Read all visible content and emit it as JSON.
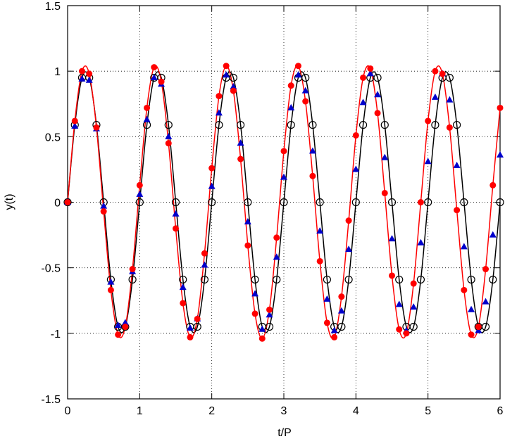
{
  "chart_data": {
    "type": "line",
    "xlabel": "t/P",
    "ylabel": "y(t)",
    "x": [
      0,
      0.1,
      0.2,
      0.3,
      0.4,
      0.5,
      0.6,
      0.7,
      0.8,
      0.9,
      1,
      1.1,
      1.2,
      1.3,
      1.4,
      1.5,
      1.6,
      1.7,
      1.8,
      1.9,
      2,
      2.1,
      2.2,
      2.3,
      2.4,
      2.5,
      2.6,
      2.7,
      2.8,
      2.9,
      3,
      3.1,
      3.2,
      3.3,
      3.4,
      3.5,
      3.6,
      3.7,
      3.8,
      3.9,
      4,
      4.1,
      4.2,
      4.3,
      4.4,
      4.5,
      4.6,
      4.7,
      4.8,
      4.9,
      5,
      5.1,
      5.2,
      5.3,
      5.4,
      5.5,
      5.6,
      5.7,
      5.8,
      5.9,
      6
    ],
    "series": [
      {
        "color": "#000000",
        "marker": "open-circle",
        "line": true,
        "values": [
          0,
          0.59,
          0.95,
          0.95,
          0.59,
          0,
          -0.59,
          -0.95,
          -0.95,
          -0.59,
          0,
          0.59,
          0.95,
          0.95,
          0.59,
          0,
          -0.59,
          -0.95,
          -0.95,
          -0.59,
          0,
          0.59,
          0.95,
          0.95,
          0.59,
          0,
          -0.59,
          -0.95,
          -0.95,
          -0.59,
          0,
          0.59,
          0.95,
          0.95,
          0.59,
          0,
          -0.59,
          -0.95,
          -0.95,
          -0.59,
          0,
          0.59,
          0.95,
          0.95,
          0.59,
          0,
          -0.59,
          -0.95,
          -0.95,
          -0.59,
          0,
          0.59,
          0.95,
          0.95,
          0.59,
          0,
          -0.59,
          -0.95,
          -0.95,
          -0.59,
          0
        ]
      },
      {
        "color": "#0000cc",
        "marker": "triangle",
        "line": false,
        "values": [
          0,
          0.58,
          0.94,
          0.93,
          0.56,
          -0.03,
          -0.61,
          -0.94,
          -0.92,
          -0.53,
          0.06,
          0.63,
          0.95,
          0.9,
          0.5,
          -0.09,
          -0.65,
          -0.96,
          -0.89,
          -0.48,
          0.12,
          0.68,
          0.97,
          0.88,
          0.45,
          -0.15,
          -0.7,
          -0.97,
          -0.86,
          -0.42,
          0.19,
          0.72,
          0.97,
          0.85,
          0.39,
          -0.22,
          -0.74,
          -0.98,
          -0.83,
          -0.36,
          0.25,
          0.76,
          0.98,
          0.82,
          0.34,
          -0.28,
          -0.78,
          -0.98,
          -0.8,
          -0.31,
          0.31,
          0.8,
          0.98,
          0.78,
          0.28,
          -0.34,
          -0.82,
          -0.98,
          -0.76,
          -0.25,
          0.36
        ]
      },
      {
        "color": "#ff0000",
        "marker": "filled-circle",
        "line": true,
        "values": [
          0,
          0.62,
          1,
          0.98,
          0.57,
          -0.07,
          -0.67,
          -1.01,
          -0.95,
          -0.51,
          0.13,
          0.72,
          1.03,
          0.92,
          0.45,
          -0.2,
          -0.77,
          -1.03,
          -0.89,
          -0.39,
          0.26,
          0.81,
          1.04,
          0.85,
          0.33,
          -0.33,
          -0.85,
          -1.04,
          -0.82,
          -0.27,
          0.39,
          0.89,
          1.04,
          0.77,
          0.2,
          -0.45,
          -0.92,
          -1.03,
          -0.72,
          -0.14,
          0.51,
          0.95,
          1.02,
          0.68,
          0.07,
          -0.56,
          -0.97,
          -1,
          -0.62,
          0,
          0.62,
          1,
          0.98,
          0.57,
          -0.06,
          -0.67,
          -1.01,
          -0.95,
          -0.51,
          0.13,
          0.72
        ]
      }
    ],
    "xlim": [
      0,
      6
    ],
    "xticks": [
      0,
      1,
      2,
      3,
      4,
      5,
      6
    ],
    "ylim": [
      -1.5,
      1.5
    ],
    "yticks": [
      -1.5,
      -1,
      -0.5,
      0,
      0.5,
      1,
      1.5
    ],
    "grid": true
  }
}
